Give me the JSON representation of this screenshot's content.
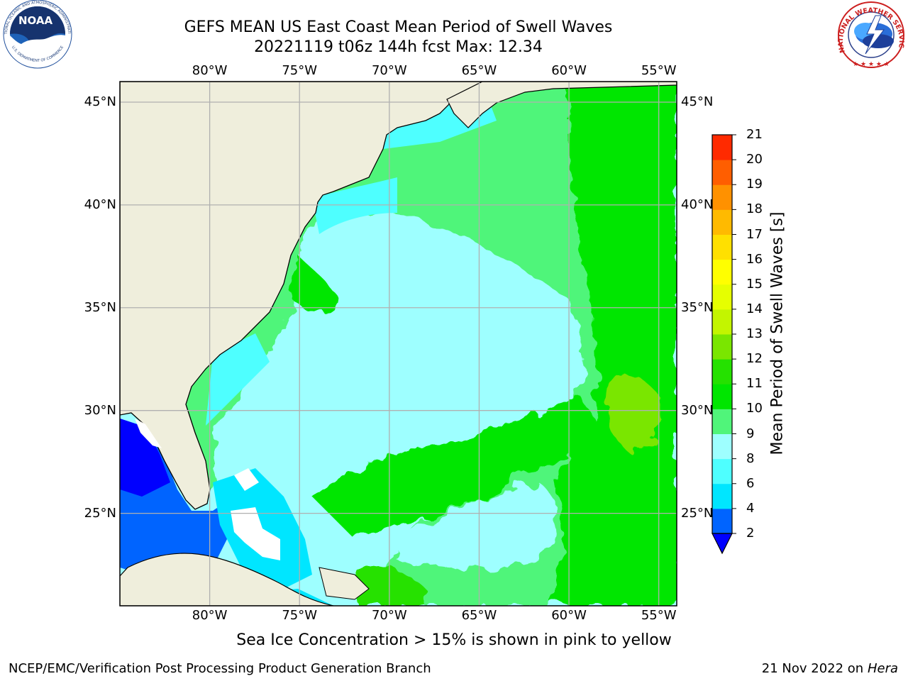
{
  "title": {
    "line1": "GEFS MEAN US East Coast Mean Period of Swell Waves",
    "line2": "20221119 t06z 144h fcst   Max: 12.34"
  },
  "map": {
    "lon_ticks": [
      "80°W",
      "75°W",
      "70°W",
      "65°W",
      "60°W",
      "55°W"
    ],
    "lat_ticks": [
      "45°N",
      "40°N",
      "35°N",
      "30°N",
      "25°N"
    ],
    "lon_range": [
      -85,
      -54
    ],
    "lat_range": [
      20.5,
      46
    ],
    "colors": {
      "land": "#efeedc",
      "ice_free_ocean_low": "#0000ff",
      "grid": "#b0b0b0",
      "coastline": "#000000"
    }
  },
  "colorbar": {
    "title": "Mean Period of Swell Waves [s]",
    "tick_labels": [
      "2",
      "4",
      "6",
      "8",
      "9",
      "10",
      "11",
      "12",
      "13",
      "14",
      "15",
      "16",
      "17",
      "18",
      "19",
      "20",
      "21"
    ],
    "levels": [
      2,
      4,
      6,
      8,
      9,
      10,
      11,
      12,
      13,
      14,
      15,
      16,
      17,
      18,
      19,
      20,
      21
    ],
    "colors": [
      "#0064ff",
      "#00e6ff",
      "#4effff",
      "#9effff",
      "#50f57a",
      "#00e600",
      "#25e100",
      "#7ae600",
      "#c3f500",
      "#e6ff00",
      "#ffff00",
      "#ffe000",
      "#ffba00",
      "#ff9100",
      "#ff5e00",
      "#ff2a00",
      "#ff0000"
    ],
    "extend_min_color": "#0000ff"
  },
  "footer": {
    "ice_note": "Sea Ice Concentration > 15% is shown in pink to yellow",
    "credit": "NCEP/EMC/Verification Post Processing Product Generation Branch",
    "run_date": "21 Nov 2022 on",
    "machine": "Hera"
  },
  "logos": {
    "noaa": {
      "text": "NOAA",
      "ring_top": "NATIONAL OCEANIC AND ATMOSPHERIC ADMINISTRATION",
      "ring_bottom": "U.S. DEPARTMENT OF COMMERCE"
    },
    "nws": {
      "ring": "NATIONAL WEATHER SERVICE"
    }
  }
}
